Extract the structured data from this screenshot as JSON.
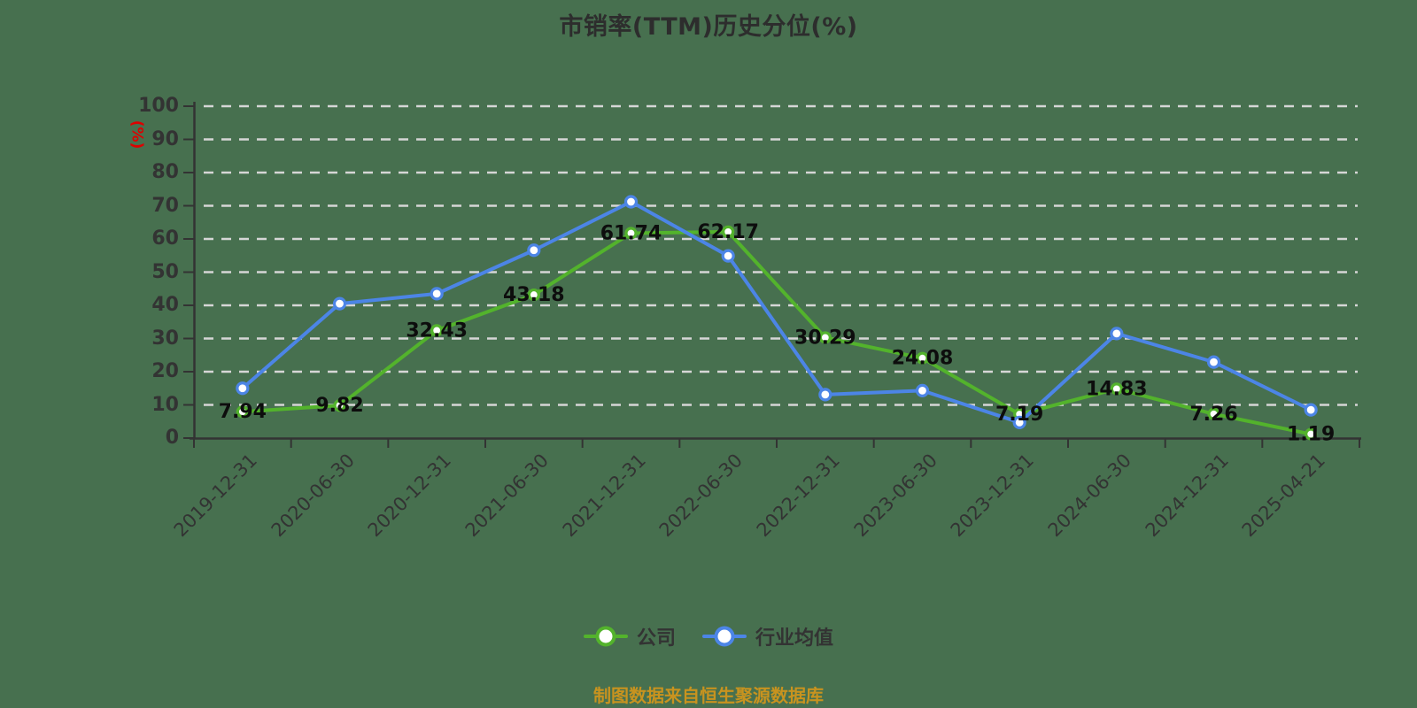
{
  "title": "市销率(TTM)历史分位(%)",
  "caption": "制图数据来自恒生聚源数据库",
  "colors": {
    "background": "#47704f",
    "company": "#53b32c",
    "industry": "#4c85e6",
    "grid": "#d6d6d6",
    "axis": "#333333",
    "tick_label": "#333333",
    "data_label": "#0d0d0d",
    "y_name": "#dd0000",
    "caption": "#c8931f",
    "title": "#2d2d2d"
  },
  "chart_data": {
    "type": "line",
    "x": [
      "2019-12-31",
      "2020-06-30",
      "2020-12-31",
      "2021-06-30",
      "2021-12-31",
      "2022-06-30",
      "2022-12-31",
      "2023-06-30",
      "2023-12-31",
      "2024-06-30",
      "2024-12-31",
      "2025-04-21"
    ],
    "series": [
      {
        "name": "公司",
        "color": "#53b32c",
        "values": [
          7.94,
          9.82,
          32.43,
          43.18,
          61.74,
          62.17,
          30.29,
          24.08,
          7.19,
          14.83,
          7.26,
          1.19
        ],
        "point_labels": [
          "7.94",
          "9.82",
          "32.43",
          "43.18",
          "61.74",
          "62.17",
          "30.29",
          "24.08",
          "7.19",
          "14.83",
          "7.26",
          "1.19"
        ],
        "labels_visible": true
      },
      {
        "name": "行业均值",
        "color": "#4c85e6",
        "values": [
          15.0,
          40.5,
          43.5,
          56.6,
          71.2,
          54.9,
          13.1,
          14.3,
          4.7,
          31.5,
          22.9,
          8.5
        ],
        "point_labels": [],
        "labels_visible": false
      }
    ],
    "title": "市销率(TTM)历史分位(%)",
    "xlabel": "",
    "ylabel": "(%)",
    "ylim": [
      0,
      100
    ],
    "ytick_step": 10,
    "yticks": [
      0,
      10,
      20,
      30,
      40,
      50,
      60,
      70,
      80,
      90,
      100
    ],
    "grid": "horizontal-dashed",
    "legend_position": "bottom"
  },
  "legend": {
    "items": [
      {
        "label": "公司",
        "color": "#53b32c"
      },
      {
        "label": "行业均值",
        "color": "#4c85e6"
      }
    ]
  }
}
